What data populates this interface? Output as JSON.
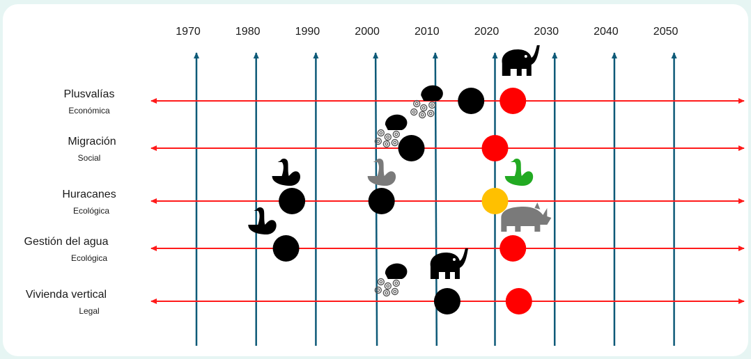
{
  "colors": {
    "axis": "#0e5a78",
    "row_line": "#ff1a1a",
    "dot_black": "#000000",
    "dot_red": "#ff0000",
    "dot_amber": "#ffc000",
    "icon_black": "#000000",
    "icon_gray": "#7a7a7a",
    "icon_green": "#22aa22"
  },
  "years": [
    "1970",
    "1980",
    "1990",
    "2000",
    "2010",
    "2020",
    "2030",
    "2040",
    "2050"
  ],
  "rows": [
    {
      "label": "Plusvalías",
      "sublabel": "Económica"
    },
    {
      "label": "Migración",
      "sublabel": "Social"
    },
    {
      "label": "Huracanes",
      "sublabel": "Ecológica"
    },
    {
      "label": "Gestión del agua",
      "sublabel": "Ecológica"
    },
    {
      "label": "Vivienda vertical",
      "sublabel": "Legal"
    }
  ],
  "dots": [
    {
      "row": 0,
      "year": 2016,
      "color": "black"
    },
    {
      "row": 0,
      "year": 2023,
      "color": "red"
    },
    {
      "row": 1,
      "year": 2006,
      "color": "black"
    },
    {
      "row": 1,
      "year": 2020,
      "color": "red"
    },
    {
      "row": 2,
      "year": 1986,
      "color": "black"
    },
    {
      "row": 2,
      "year": 2001,
      "color": "black"
    },
    {
      "row": 2,
      "year": 2020,
      "color": "amber"
    },
    {
      "row": 3,
      "year": 1985,
      "color": "black"
    },
    {
      "row": 3,
      "year": 2023,
      "color": "red"
    },
    {
      "row": 4,
      "year": 2012,
      "color": "black"
    },
    {
      "row": 4,
      "year": 2024,
      "color": "red"
    }
  ],
  "icons": [
    {
      "type": "elephant-icon",
      "row": 0,
      "year": 2024,
      "color": "black"
    },
    {
      "type": "jellyfish-icon",
      "row": 0,
      "year": 2008,
      "color": "black"
    },
    {
      "type": "jellyfish-icon",
      "row": 1,
      "year": 2003,
      "color": "black"
    },
    {
      "type": "swan-icon",
      "row": 2,
      "year": 1985,
      "color": "black"
    },
    {
      "type": "swan-icon",
      "row": 2,
      "year": 2001,
      "color": "gray"
    },
    {
      "type": "swan-icon",
      "row": 2,
      "year": 2024,
      "color": "green"
    },
    {
      "type": "rhino-icon",
      "row": 3,
      "year": 2025,
      "color": "gray"
    },
    {
      "type": "swan-icon",
      "row": 3,
      "year": 1982,
      "color": "black"
    },
    {
      "type": "jellyfish-icon",
      "row": 4,
      "year": 2003,
      "color": "black"
    },
    {
      "type": "elephant-icon",
      "row": 4,
      "year": 2012,
      "color": "black"
    }
  ]
}
